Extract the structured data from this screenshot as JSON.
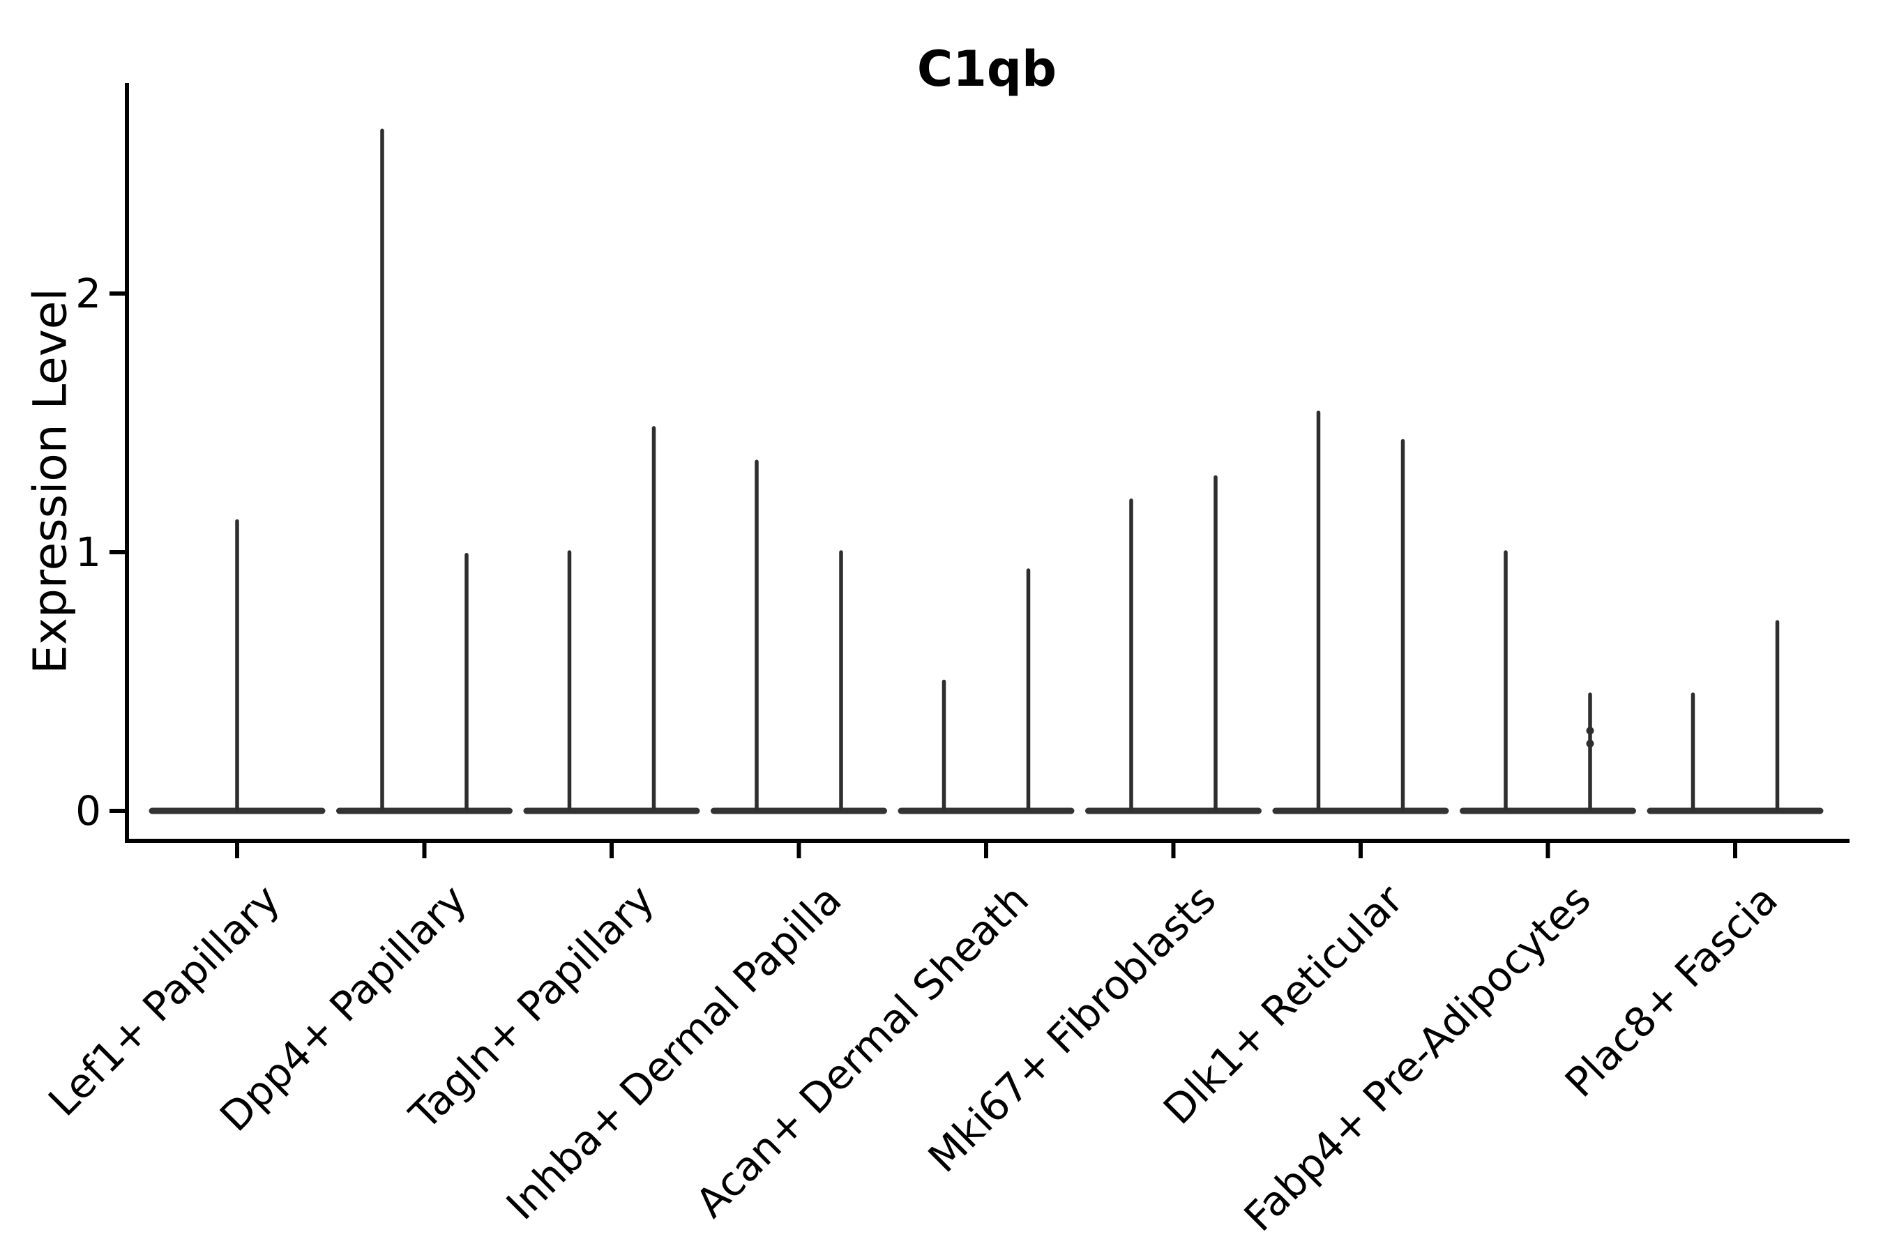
{
  "chart_data": {
    "type": "violin",
    "title": "C1qb",
    "ylabel": "Expression Level",
    "yticks": [
      0,
      1,
      2
    ],
    "ylim": [
      -0.13,
      2.81
    ],
    "grid": false,
    "legend": "none",
    "categories": [
      "Lef1+ Papillary",
      "Dpp4+ Papillary",
      "Tagln+ Papillary",
      "Inhba+ Dermal Papilla",
      "Acan+ Dermal Sheath",
      "Mki67+ Fibroblasts",
      "Dlk1+ Reticular",
      "Fabp4+ Pre-Adipocytes",
      "Plac8+ Fascia"
    ],
    "violins": [
      {
        "category": "Lef1+ Papillary",
        "spikes": [
          {
            "side": "center",
            "max": 1.12
          }
        ]
      },
      {
        "category": "Dpp4+ Papillary",
        "spikes": [
          {
            "side": "left",
            "max": 2.63
          },
          {
            "side": "right",
            "max": 0.99
          }
        ]
      },
      {
        "category": "Tagln+ Papillary",
        "spikes": [
          {
            "side": "left",
            "max": 1.0
          },
          {
            "side": "right",
            "max": 1.48
          }
        ]
      },
      {
        "category": "Inhba+ Dermal Papilla",
        "spikes": [
          {
            "side": "left",
            "max": 1.35
          },
          {
            "side": "right",
            "max": 1.0
          }
        ]
      },
      {
        "category": "Acan+ Dermal Sheath",
        "spikes": [
          {
            "side": "left",
            "max": 0.5
          },
          {
            "side": "right",
            "max": 0.93
          }
        ]
      },
      {
        "category": "Mki67+ Fibroblasts",
        "spikes": [
          {
            "side": "left",
            "max": 1.2
          },
          {
            "side": "right",
            "max": 1.29
          }
        ]
      },
      {
        "category": "Dlk1+ Reticular",
        "spikes": [
          {
            "side": "left",
            "max": 1.54
          },
          {
            "side": "right",
            "max": 1.43
          }
        ]
      },
      {
        "category": "Fabp4+ Pre-Adipocytes",
        "spikes": [
          {
            "side": "left",
            "max": 1.0
          },
          {
            "side": "right",
            "max": 0.45,
            "knots": [
              0.31,
              0.26
            ]
          }
        ]
      },
      {
        "category": "Plac8+ Fascia",
        "spikes": [
          {
            "side": "left",
            "max": 0.45
          },
          {
            "side": "right",
            "max": 0.73
          }
        ]
      }
    ],
    "colors": {
      "violin_line": "#2e2e2e",
      "violin_base": "#333333",
      "axis": "#000000",
      "text": "#000000",
      "background": "#ffffff"
    }
  }
}
